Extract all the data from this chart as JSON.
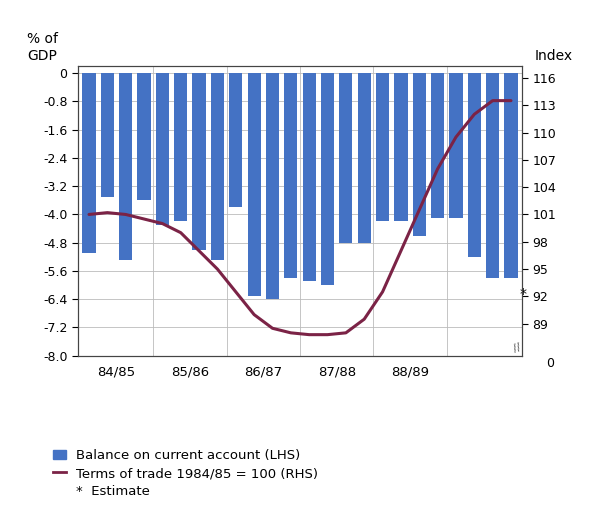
{
  "bar_values": [
    -5.1,
    -3.5,
    -5.3,
    -3.6,
    -4.3,
    -4.2,
    -5.0,
    -5.3,
    -3.8,
    -6.3,
    -6.4,
    -5.8,
    -5.9,
    -6.0,
    -4.8,
    -4.8,
    -4.2,
    -4.2,
    -4.6,
    -4.1,
    -4.1,
    -5.2,
    -5.8,
    -5.8
  ],
  "tot_values": [
    101.0,
    101.2,
    101.0,
    100.5,
    100.0,
    99.0,
    97.0,
    95.0,
    92.5,
    90.0,
    88.5,
    88.0,
    87.8,
    87.8,
    88.0,
    89.5,
    92.5,
    97.0,
    101.5,
    106.0,
    109.5,
    112.0,
    113.5,
    113.5
  ],
  "bar_color": "#4472C4",
  "line_color": "#7B2346",
  "lhs_ylim_min": -8.0,
  "lhs_ylim_max": 0.2,
  "lhs_yticks": [
    0,
    -0.8,
    -1.6,
    -2.4,
    -3.2,
    -4.0,
    -4.8,
    -5.6,
    -6.4,
    -7.2,
    -8.0
  ],
  "lhs_yticklabels": [
    "0",
    "-0.8",
    "-1.6",
    "-2.4",
    "-3.2",
    "-4.0",
    "-4.8",
    "-5.6",
    "-6.4",
    "-7.2",
    "-8.0"
  ],
  "rhs_yticks": [
    116,
    113,
    110,
    107,
    104,
    101,
    98,
    95,
    92,
    89
  ],
  "rhs_yticklabels": [
    "116",
    "113",
    "110",
    "107",
    "104",
    "101",
    "98",
    "95",
    "92",
    "89"
  ],
  "rhs_ylim_min": 85.5,
  "rhs_ylim_max": 117.3,
  "lhs_ylabel_text": "% of\nGDP",
  "rhs_ylabel_text": "Index",
  "xtick_positions": [
    1.5,
    5.5,
    9.5,
    13.5,
    17.5,
    21.5
  ],
  "xtick_labels": [
    "84/85",
    "85/86",
    "86/87",
    "87/88",
    "88/89",
    ""
  ],
  "year_boundary_x": [
    3.5,
    7.5,
    11.5,
    15.5,
    19.5
  ],
  "gridline_color": "#bbbbbb",
  "bg_color": "#ffffff",
  "legend_bar_label": "Balance on current account (LHS)",
  "legend_line_label": "Terms of trade 1984/85 = 100 (RHS)",
  "legend_star_label": "*  Estimate",
  "line_width": 2.2,
  "n_bars": 24,
  "bar_width": 0.72
}
